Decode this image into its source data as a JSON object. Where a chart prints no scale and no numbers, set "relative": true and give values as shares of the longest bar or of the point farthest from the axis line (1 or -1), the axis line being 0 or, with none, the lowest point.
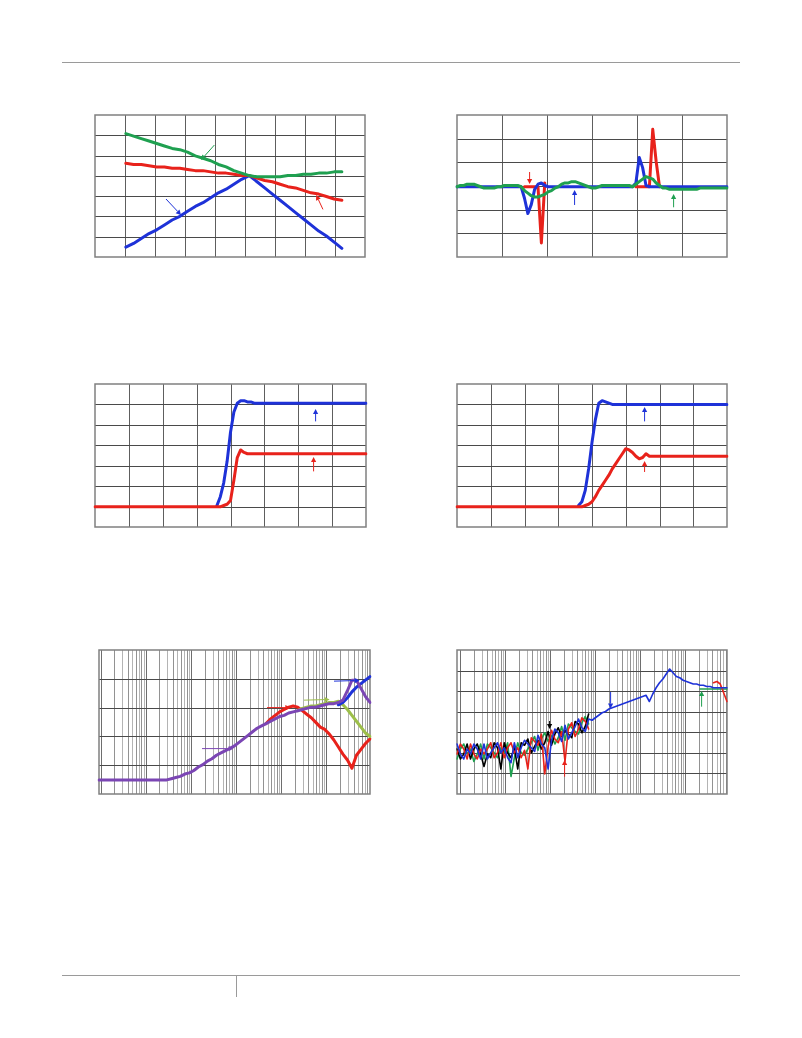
{
  "chart_data": [
    {
      "type": "line",
      "relative": true,
      "grid": true,
      "categories": [
        null,
        null,
        null,
        null,
        null,
        null,
        null,
        null,
        null,
        null,
        null,
        null,
        null,
        null,
        null,
        null,
        null,
        null,
        null,
        null,
        null,
        null,
        null,
        null,
        null,
        null,
        null,
        null,
        null,
        null,
        null,
        null,
        null,
        null,
        null,
        null
      ],
      "series": [
        {
          "color": "#1e32d8",
          "values": [
            null,
            null,
            null,
            null,
            0.08,
            0.11,
            0.15,
            0.19,
            0.22,
            0.26,
            0.3,
            0.33,
            0.37,
            0.41,
            0.44,
            0.48,
            0.52,
            0.55,
            0.59,
            0.63,
            0.66,
            0.61,
            0.56,
            0.51,
            0.46,
            0.41,
            0.36,
            0.31,
            0.26,
            0.21,
            0.17,
            0.12,
            0.07,
            null,
            null,
            null
          ]
        },
        {
          "color": "#e8221b",
          "values": [
            null,
            null,
            null,
            null,
            0.76,
            0.75,
            0.75,
            0.74,
            0.73,
            0.73,
            0.72,
            0.72,
            0.71,
            0.7,
            0.7,
            0.69,
            0.68,
            0.68,
            0.67,
            0.66,
            0.66,
            0.64,
            0.62,
            0.61,
            0.59,
            0.57,
            0.56,
            0.54,
            0.52,
            0.51,
            0.49,
            0.47,
            0.46,
            null,
            null,
            null
          ]
        },
        {
          "color": "#1fa050",
          "values": [
            null,
            null,
            null,
            null,
            1,
            0.98,
            0.96,
            0.94,
            0.92,
            0.9,
            0.88,
            0.87,
            0.85,
            0.82,
            0.8,
            0.78,
            0.75,
            0.73,
            0.7,
            0.68,
            0.66,
            0.65,
            0.65,
            0.65,
            0.65,
            0.66,
            0.66,
            0.67,
            0.67,
            0.68,
            0.68,
            0.69,
            0.69,
            null,
            null,
            null
          ]
        }
      ]
    },
    {
      "type": "line",
      "relative": true,
      "grid": true,
      "categories": [
        null,
        null,
        null,
        null,
        null,
        null,
        null,
        null,
        null,
        null,
        null,
        null,
        null,
        null,
        null,
        null,
        null,
        null,
        null,
        null,
        null,
        null,
        null,
        null,
        null,
        null,
        null,
        null,
        null,
        null,
        null,
        null,
        null,
        null,
        null,
        null,
        null,
        null,
        null,
        null,
        null,
        null,
        null,
        null,
        null,
        null,
        null,
        null,
        null,
        null,
        null,
        null,
        null,
        null,
        null,
        null,
        null,
        null,
        null,
        null,
        null,
        null,
        null,
        null,
        null,
        null,
        null,
        null,
        null,
        null,
        null,
        null,
        null,
        null,
        null,
        null,
        null,
        null,
        null,
        null,
        null
      ],
      "series": [
        {
          "color": "#e8221b",
          "values": [
            null,
            null,
            null,
            null,
            null,
            null,
            null,
            null,
            null,
            null,
            null,
            null,
            null,
            null,
            null,
            null,
            null,
            null,
            null,
            null,
            0.55,
            0.55,
            0.55,
            0.55,
            0.55,
            0.11,
            0.58,
            null,
            null,
            null,
            null,
            null,
            null,
            null,
            null,
            null,
            null,
            null,
            null,
            null,
            null,
            null,
            null,
            null,
            null,
            null,
            null,
            null,
            null,
            null,
            null,
            null,
            null,
            0.55,
            0.55,
            0.55,
            0.55,
            0.55,
            1,
            0.75,
            0.55,
            null,
            null,
            null,
            null,
            null,
            null,
            null,
            null,
            null,
            null,
            null,
            null,
            null,
            null,
            null,
            null,
            null,
            null,
            null,
            null
          ]
        },
        {
          "color": "#1e32d8",
          "values": [
            0.55,
            0.55,
            0.55,
            0.55,
            0.55,
            0.55,
            0.55,
            0.55,
            0.55,
            0.55,
            0.55,
            0.55,
            0.55,
            0.55,
            0.55,
            0.55,
            0.55,
            0.55,
            0.55,
            0.55,
            0.46,
            0.34,
            0.41,
            0.53,
            0.57,
            0.58,
            0.56,
            0.55,
            0.55,
            0.55,
            0.55,
            0.55,
            0.55,
            0.55,
            0.55,
            0.55,
            0.55,
            0.55,
            0.55,
            0.55,
            0.55,
            0.55,
            0.55,
            0.55,
            0.55,
            0.55,
            0.55,
            0.55,
            0.55,
            0.55,
            0.55,
            0.55,
            0.55,
            0.58,
            0.78,
            0.7,
            0.56,
            0.55,
            0.55,
            0.55,
            0.55,
            0.55,
            0.55,
            0.55,
            0.55,
            0.55,
            0.55,
            0.55,
            0.55,
            0.55,
            0.55,
            0.55,
            0.55,
            0.55,
            0.55,
            0.55,
            0.55,
            0.55,
            0.55,
            0.55,
            0.55
          ]
        },
        {
          "color": "#1fa050",
          "values": [
            0.55,
            0.56,
            0.56,
            0.57,
            0.57,
            0.57,
            0.56,
            0.55,
            0.54,
            0.54,
            0.54,
            0.54,
            0.55,
            0.55,
            0.56,
            0.56,
            0.56,
            0.56,
            0.56,
            0.55,
            0.52,
            0.5,
            0.48,
            0.47,
            0.47,
            0.48,
            0.49,
            0.51,
            0.52,
            0.54,
            0.55,
            0.57,
            0.58,
            0.58,
            0.59,
            0.59,
            0.58,
            0.57,
            0.56,
            0.55,
            0.54,
            0.54,
            0.55,
            0.56,
            0.56,
            0.56,
            0.56,
            0.56,
            0.56,
            0.56,
            0.56,
            0.56,
            0.55,
            0.57,
            0.59,
            0.61,
            0.63,
            0.62,
            0.61,
            0.58,
            0.56,
            0.54,
            0.54,
            0.53,
            0.53,
            0.53,
            0.53,
            0.53,
            0.53,
            0.53,
            0.53,
            0.53,
            0.54,
            0.54,
            0.54,
            0.54,
            0.54,
            0.54,
            0.54,
            0.54,
            0.54
          ]
        }
      ]
    },
    {
      "type": "line",
      "relative": true,
      "grid": true,
      "categories": [
        null,
        null,
        null,
        null,
        null,
        null,
        null,
        null,
        null,
        null,
        null,
        null,
        null,
        null,
        null,
        null,
        null,
        null,
        null,
        null,
        null,
        null,
        null,
        null,
        null,
        null,
        null,
        null,
        null,
        null,
        null,
        null,
        null,
        null,
        null,
        null,
        null,
        null,
        null,
        null,
        null,
        null,
        null,
        null,
        null,
        null,
        null,
        null,
        null,
        null,
        null,
        null,
        null,
        null,
        null,
        null,
        null,
        null,
        null,
        null,
        null,
        null,
        null,
        null,
        null,
        null,
        null,
        null,
        null,
        null,
        null,
        null,
        null,
        null,
        null,
        null,
        null,
        null,
        null,
        null,
        null
      ],
      "series": [
        {
          "color": "#1e32d8",
          "values": [
            null,
            null,
            null,
            null,
            null,
            null,
            null,
            null,
            null,
            null,
            null,
            null,
            null,
            null,
            null,
            null,
            null,
            null,
            null,
            null,
            null,
            null,
            null,
            null,
            null,
            null,
            null,
            null,
            null,
            null,
            null,
            null,
            null,
            null,
            null,
            null,
            0.17,
            0.24,
            0.35,
            0.52,
            0.75,
            0.91,
            0.98,
            1,
            1,
            0.99,
            0.99,
            0.98,
            0.98,
            0.98,
            0.98,
            0.98,
            0.98,
            0.98,
            0.98,
            0.98,
            0.98,
            0.98,
            0.98,
            0.98,
            0.98,
            0.98,
            0.98,
            0.98,
            0.98,
            0.98,
            0.98,
            0.98,
            0.98,
            0.98,
            0.98,
            0.98,
            0.98,
            0.98,
            0.98,
            0.98,
            0.98,
            0.98,
            0.98,
            0.98,
            0.98
          ]
        },
        {
          "color": "#e8221b",
          "values": [
            0.16,
            0.16,
            0.16,
            0.16,
            0.16,
            0.16,
            0.16,
            0.16,
            0.16,
            0.16,
            0.16,
            0.16,
            0.16,
            0.16,
            0.16,
            0.16,
            0.16,
            0.16,
            0.16,
            0.16,
            0.16,
            0.16,
            0.16,
            0.16,
            0.16,
            0.16,
            0.16,
            0.16,
            0.16,
            0.16,
            0.16,
            0.16,
            0.16,
            0.16,
            0.16,
            0.16,
            0.16,
            0.16,
            0.17,
            0.18,
            0.21,
            0.37,
            0.55,
            0.61,
            0.59,
            0.58,
            0.58,
            0.58,
            0.58,
            0.58,
            0.58,
            0.58,
            0.58,
            0.58,
            0.58,
            0.58,
            0.58,
            0.58,
            0.58,
            0.58,
            0.58,
            0.58,
            0.58,
            0.58,
            0.58,
            0.58,
            0.58,
            0.58,
            0.58,
            0.58,
            0.58,
            0.58,
            0.58,
            0.58,
            0.58,
            0.58,
            0.58,
            0.58,
            0.58,
            0.58,
            0.58
          ]
        }
      ]
    },
    {
      "type": "line",
      "relative": true,
      "grid": true,
      "categories": [
        null,
        null,
        null,
        null,
        null,
        null,
        null,
        null,
        null,
        null,
        null,
        null,
        null,
        null,
        null,
        null,
        null,
        null,
        null,
        null,
        null,
        null,
        null,
        null,
        null,
        null,
        null,
        null,
        null,
        null,
        null,
        null,
        null,
        null,
        null,
        null,
        null,
        null,
        null,
        null,
        null,
        null,
        null,
        null,
        null,
        null,
        null,
        null,
        null,
        null,
        null,
        null,
        null,
        null,
        null,
        null,
        null,
        null,
        null,
        null,
        null,
        null,
        null,
        null,
        null,
        null,
        null,
        null,
        null,
        null,
        null,
        null,
        null,
        null,
        null,
        null,
        null,
        null,
        null,
        null,
        null
      ],
      "series": [
        {
          "color": "#1e32d8",
          "values": [
            null,
            null,
            null,
            null,
            null,
            null,
            null,
            null,
            null,
            null,
            null,
            null,
            null,
            null,
            null,
            null,
            null,
            null,
            null,
            null,
            null,
            null,
            null,
            null,
            null,
            null,
            null,
            null,
            null,
            null,
            null,
            null,
            null,
            null,
            null,
            null,
            0.17,
            0.2,
            0.29,
            0.46,
            0.67,
            0.85,
            0.98,
            1,
            0.99,
            0.98,
            0.97,
            0.97,
            0.97,
            0.97,
            0.97,
            0.97,
            0.97,
            0.97,
            0.97,
            0.97,
            0.97,
            0.97,
            0.97,
            0.97,
            0.97,
            0.97,
            0.97,
            0.97,
            0.97,
            0.97,
            0.97,
            0.97,
            0.97,
            0.97,
            0.97,
            0.97,
            0.97,
            0.97,
            0.97,
            0.97,
            0.97,
            0.97,
            0.97,
            0.97,
            0.97
          ]
        },
        {
          "color": "#e8221b",
          "values": [
            0.16,
            0.16,
            0.16,
            0.16,
            0.16,
            0.16,
            0.16,
            0.16,
            0.16,
            0.16,
            0.16,
            0.16,
            0.16,
            0.16,
            0.16,
            0.16,
            0.16,
            0.16,
            0.16,
            0.16,
            0.16,
            0.16,
            0.16,
            0.16,
            0.16,
            0.16,
            0.16,
            0.16,
            0.16,
            0.16,
            0.16,
            0.16,
            0.16,
            0.16,
            0.16,
            0.16,
            0.16,
            0.16,
            0.17,
            0.18,
            0.2,
            0.24,
            0.29,
            0.33,
            0.37,
            0.41,
            0.46,
            0.5,
            0.54,
            0.58,
            0.62,
            0.61,
            0.59,
            0.56,
            0.54,
            0.55,
            0.58,
            0.56,
            0.56,
            0.56,
            0.56,
            0.56,
            0.56,
            0.56,
            0.56,
            0.56,
            0.56,
            0.56,
            0.56,
            0.56,
            0.56,
            0.56,
            0.56,
            0.56,
            0.56,
            0.56,
            0.56,
            0.56,
            0.56,
            0.56,
            0.56
          ]
        }
      ]
    },
    {
      "type": "line",
      "relative": true,
      "grid": true,
      "categories": [
        null,
        null,
        null,
        null,
        null,
        null,
        null,
        null,
        null,
        null,
        null,
        null,
        null,
        null,
        null,
        null,
        null,
        null,
        null,
        null,
        null,
        null,
        null,
        null,
        null,
        null,
        null,
        null,
        null,
        null,
        null,
        null,
        null,
        null,
        null,
        null,
        null,
        null,
        null,
        null,
        null,
        null,
        null,
        null,
        null,
        null,
        null,
        null,
        null,
        null,
        null,
        null,
        null,
        null,
        null,
        null,
        null,
        null,
        null,
        null,
        null
      ],
      "series": [
        {
          "color": "#e8221b",
          "values": [
            null,
            null,
            null,
            null,
            null,
            null,
            null,
            null,
            null,
            null,
            null,
            null,
            null,
            null,
            null,
            null,
            null,
            null,
            null,
            null,
            null,
            null,
            null,
            null,
            null,
            null,
            null,
            null,
            null,
            null,
            null,
            null,
            null,
            null,
            null,
            null,
            null,
            0.6,
            0.64,
            0.67,
            0.7,
            0.72,
            0.74,
            0.75,
            0.74,
            0.71,
            0.68,
            0.65,
            0.61,
            0.57,
            0.55,
            0.51,
            0.46,
            0.4,
            0.34,
            0.29,
            0.22,
            0.33,
            0.38,
            0.43,
            0.47
          ]
        },
        {
          "color": "#9dbf4a",
          "values": [
            null,
            null,
            null,
            null,
            null,
            null,
            null,
            null,
            null,
            null,
            null,
            null,
            null,
            null,
            null,
            null,
            null,
            null,
            null,
            null,
            null,
            null,
            null,
            null,
            null,
            null,
            null,
            null,
            null,
            null,
            null,
            null,
            null,
            null,
            null,
            null,
            null,
            null,
            null,
            null,
            null,
            null,
            null,
            null,
            0.71,
            0.73,
            0.74,
            0.75,
            0.75,
            0.76,
            0.77,
            0.78,
            0.78,
            0.79,
            0.76,
            0.72,
            0.67,
            0.62,
            0.57,
            0.52,
            0.49
          ]
        },
        {
          "color": "#1e32d8",
          "values": [
            null,
            null,
            null,
            null,
            null,
            null,
            null,
            null,
            null,
            null,
            null,
            null,
            null,
            null,
            null,
            null,
            null,
            null,
            null,
            null,
            null,
            null,
            null,
            null,
            null,
            null,
            null,
            null,
            null,
            null,
            null,
            null,
            null,
            null,
            null,
            null,
            null,
            null,
            null,
            null,
            null,
            null,
            null,
            null,
            null,
            null,
            null,
            null,
            null,
            null,
            null,
            null,
            null,
            0.76,
            0.78,
            0.82,
            0.87,
            0.91,
            0.94,
            0.97,
            1
          ]
        },
        {
          "color": "#7b46b4",
          "values": [
            0.12,
            0.12,
            0.12,
            0.12,
            0.12,
            0.12,
            0.12,
            0.12,
            0.12,
            0.12,
            0.12,
            0.12,
            0.12,
            0.12,
            0.12,
            0.12,
            0.13,
            0.14,
            0.15,
            0.17,
            0.18,
            0.2,
            0.23,
            0.25,
            0.28,
            0.3,
            0.33,
            0.35,
            0.37,
            0.39,
            0.41,
            0.44,
            0.47,
            0.5,
            0.53,
            0.56,
            0.58,
            0.6,
            0.62,
            0.64,
            0.66,
            0.67,
            0.69,
            0.7,
            0.71,
            0.72,
            0.73,
            0.74,
            0.74,
            0.75,
            0.76,
            0.77,
            0.77,
            0.78,
            0.8,
            0.88,
            0.97,
            0.97,
            0.9,
            0.83,
            0.78
          ]
        }
      ]
    },
    {
      "type": "line",
      "relative": true,
      "grid": true,
      "categories": [
        null,
        null,
        null,
        null,
        null,
        null,
        null,
        null,
        null,
        null,
        null,
        null,
        null,
        null,
        null,
        null,
        null,
        null,
        null,
        null,
        null,
        null,
        null,
        null,
        null,
        null,
        null,
        null,
        null,
        null,
        null,
        null,
        null,
        null,
        null,
        null,
        null,
        null,
        null,
        null,
        null,
        null,
        null,
        null,
        null,
        null,
        null,
        null,
        null,
        null,
        null,
        null,
        null,
        null,
        null,
        null,
        null,
        null,
        null,
        null,
        null,
        null,
        null,
        null,
        null,
        null,
        null,
        null,
        null,
        null,
        null,
        null,
        null,
        null,
        null,
        null,
        null,
        null,
        null,
        null,
        null
      ],
      "series": [
        {
          "color": "#1fa050",
          "values": [
            0.28,
            0.36,
            0.4,
            0.32,
            0.36,
            0.26,
            0.32,
            0.4,
            0.28,
            0.4,
            0.37,
            0.33,
            0.29,
            0.37,
            0.33,
            0.41,
            0.14,
            0.29,
            0.41,
            0.33,
            0.31,
            0.36,
            0.41,
            0.46,
            0.35,
            0.44,
            0.49,
            0.42,
            0.47,
            0.4,
            0.45,
            0.54,
            0.43,
            0.56,
            0.53,
            0.5,
            0.48,
            0.57,
            0.62,
            0.56,
            null,
            null,
            null,
            null,
            null,
            null,
            null,
            null,
            null,
            null,
            null,
            null,
            null,
            null,
            null,
            null,
            null,
            null,
            null,
            null,
            null,
            null,
            null,
            null,
            null,
            null,
            null,
            null,
            null,
            null,
            null,
            null,
            0.84,
            0.84,
            0.84,
            0.84,
            0.84,
            0.84,
            0.84,
            0.84,
            0.84
          ]
        },
        {
          "color": "#000000",
          "values": [
            0.36,
            0.28,
            0.32,
            0.4,
            0.28,
            0.36,
            0.4,
            0.32,
            0.22,
            0.32,
            0.29,
            0.41,
            0.37,
            0.2,
            0.41,
            0.33,
            0.29,
            0.37,
            0.2,
            0.41,
            0.39,
            0.44,
            0.33,
            0.38,
            0.43,
            0.36,
            0.41,
            0.5,
            0.39,
            0.48,
            0.53,
            0.46,
            0.51,
            0.48,
            0.45,
            0.58,
            0.56,
            0.49,
            0.54,
            0.64,
            null,
            null,
            null,
            null,
            null,
            null,
            null,
            null,
            null,
            null,
            null,
            null,
            null,
            null,
            null,
            null,
            null,
            null,
            null,
            null,
            null,
            null,
            null,
            null,
            null,
            null,
            null,
            null,
            null,
            null,
            null,
            null,
            null,
            null,
            null,
            null,
            null,
            null,
            null,
            null,
            null
          ]
        },
        {
          "color": "#e8221b",
          "values": [
            0.32,
            0.4,
            0.36,
            0.28,
            0.4,
            0.32,
            0.28,
            0.36,
            0.32,
            0.36,
            0.41,
            0.29,
            0.33,
            0.41,
            0.29,
            0.37,
            0.41,
            0.33,
            0.37,
            0.29,
            0.35,
            0.2,
            0.45,
            0.42,
            0.39,
            0.48,
            0.16,
            0.38,
            0.51,
            0.44,
            0.41,
            0.5,
            0.26,
            0.52,
            0.57,
            0.46,
            0.52,
            0.61,
            0.58,
            0.52,
            null,
            null,
            null,
            null,
            null,
            null,
            null,
            null,
            null,
            null,
            null,
            null,
            null,
            null,
            null,
            null,
            null,
            null,
            null,
            null,
            null,
            null,
            null,
            null,
            null,
            null,
            null,
            null,
            null,
            null,
            null,
            null,
            null,
            null,
            null,
            null,
            0.89,
            0.9,
            0.88,
            0.81,
            0.74
          ]
        },
        {
          "color": "#1e32d8",
          "values": [
            0.4,
            0.32,
            0.28,
            0.36,
            0.32,
            0.4,
            0.36,
            0.28,
            0.4,
            0.28,
            0.33,
            0.37,
            0.41,
            0.33,
            0.37,
            0.29,
            0.25,
            0.41,
            0.29,
            0.37,
            0.43,
            0.4,
            0.37,
            0.34,
            0.47,
            0.4,
            0.37,
            0.2,
            0.43,
            0.52,
            0.49,
            0.42,
            0.55,
            0.44,
            0.49,
            0.54,
            0.6,
            0.53,
            0.5,
            0.6,
            0.59,
            0.61,
            0.63,
            0.65,
            0.66,
            0.68,
            0.69,
            0.7,
            0.71,
            0.72,
            0.73,
            0.74,
            0.75,
            0.76,
            0.77,
            0.78,
            0.79,
            0.74,
            0.8,
            0.85,
            0.89,
            0.92,
            0.96,
            1,
            0.97,
            0.94,
            0.93,
            0.91,
            0.9,
            0.89,
            0.88,
            0.88,
            0.87,
            0.87,
            0.86,
            0.86,
            0.85,
            0.85,
            0.85,
            0.85,
            0.85
          ]
        }
      ]
    }
  ]
}
